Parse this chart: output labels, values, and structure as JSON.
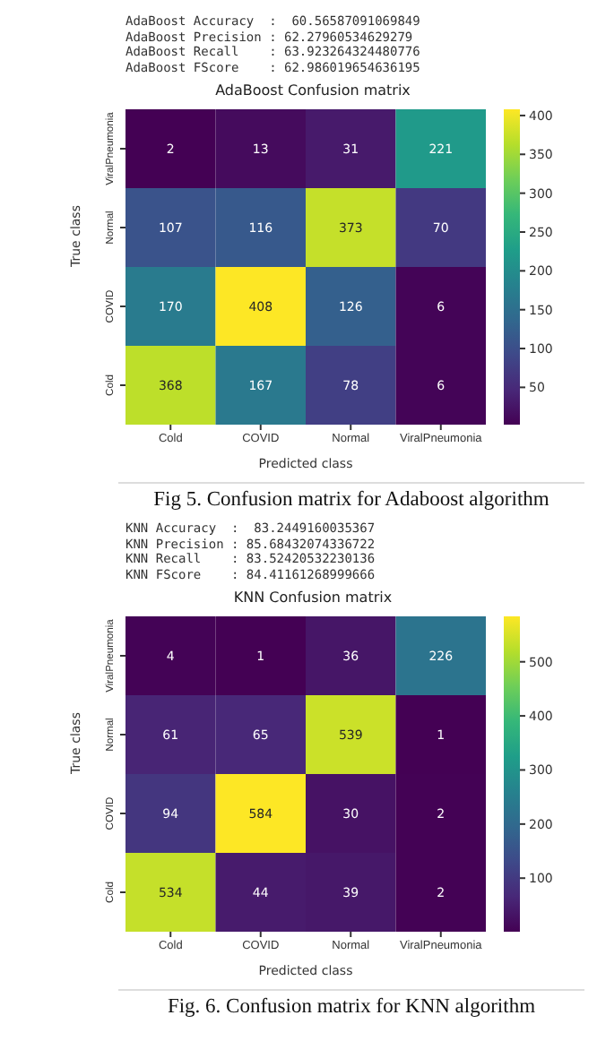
{
  "chart_data": [
    {
      "type": "heatmap",
      "title": "AdaBoost Confusion matrix",
      "xlabel": "Predicted class",
      "ylabel": "True class",
      "categories": [
        "Cold",
        "COVID",
        "Normal",
        "ViralPneumonia"
      ],
      "y_categories": [
        "ViralPneumonia",
        "Normal",
        "COVID",
        "Cold"
      ],
      "cells": [
        [
          2,
          13,
          31,
          221
        ],
        [
          107,
          116,
          373,
          70
        ],
        [
          170,
          408,
          126,
          6
        ],
        [
          368,
          167,
          78,
          6
        ]
      ],
      "clim": [
        2,
        408
      ],
      "cticks": [
        50,
        100,
        150,
        200,
        250,
        300,
        350,
        400
      ],
      "data_labels": true,
      "annotations": [
        "AdaBoost Accuracy  :  60.56587091069849",
        "AdaBoost Precision : 62.27960534629279",
        "AdaBoost Recall    : 63.923264324480776",
        "AdaBoost FScore    : 62.986019654636195",
        "Fig 5. Confusion matrix for Adaboost algorithm"
      ]
    },
    {
      "type": "heatmap",
      "title": "KNN Confusion matrix",
      "xlabel": "Predicted class",
      "ylabel": "True class",
      "categories": [
        "Cold",
        "COVID",
        "Normal",
        "ViralPneumonia"
      ],
      "y_categories": [
        "ViralPneumonia",
        "Normal",
        "COVID",
        "Cold"
      ],
      "cells": [
        [
          4,
          1,
          36,
          226
        ],
        [
          61,
          65,
          539,
          1
        ],
        [
          94,
          584,
          30,
          2
        ],
        [
          534,
          44,
          39,
          2
        ]
      ],
      "clim": [
        1,
        584
      ],
      "cticks": [
        100,
        200,
        300,
        400,
        500
      ],
      "data_labels": true,
      "annotations": [
        "KNN Accuracy  :  83.2449160035367",
        "KNN Precision : 85.68432074336722",
        "KNN Recall    : 83.52420532230136",
        "KNN FScore    : 84.41161268999666",
        "Fig. 6.  Confusion matrix for KNN algorithm"
      ]
    }
  ]
}
